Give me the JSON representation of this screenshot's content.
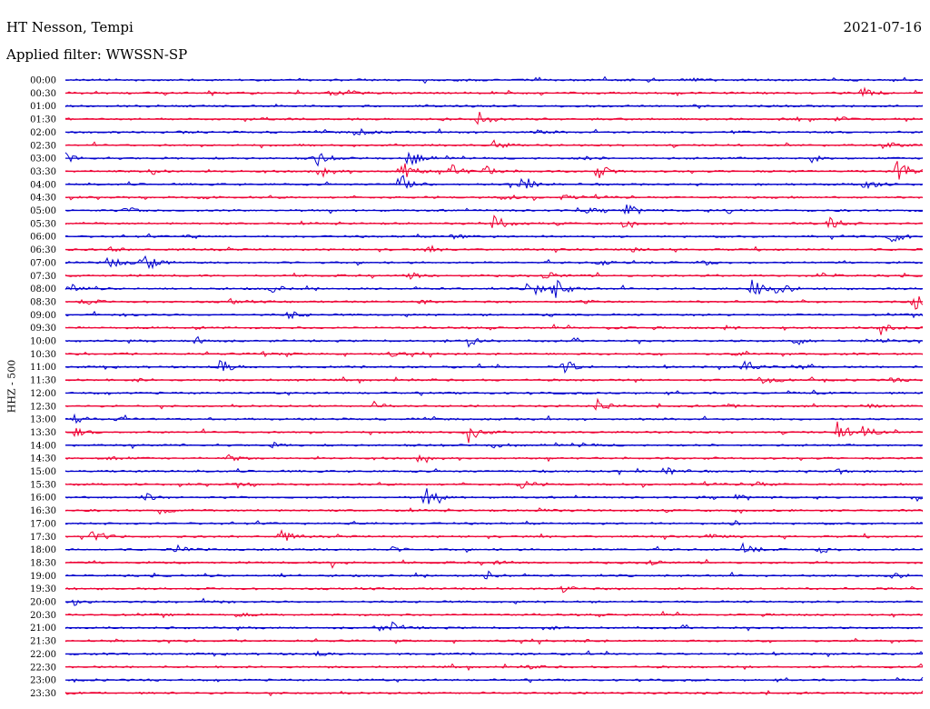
{
  "header": {
    "station": "HT Nesson, Tempi",
    "date": "2021-07-16",
    "filter": "Applied filter: WWSSN-SP"
  },
  "chart_data": {
    "type": "line",
    "chart_kind": "helicorder",
    "channel_label": "HHZ - 500",
    "colors": [
      "#0000cc",
      "#ee0033"
    ],
    "rows": [
      {
        "label": "00:00",
        "events": [
          [
            0.45,
            2
          ],
          [
            0.68,
            2
          ],
          [
            0.73,
            2
          ]
        ]
      },
      {
        "label": "00:30",
        "events": [
          [
            0.3,
            6
          ],
          [
            0.33,
            3
          ],
          [
            0.93,
            8
          ]
        ]
      },
      {
        "label": "01:00",
        "events": []
      },
      {
        "label": "01:30",
        "events": [
          [
            0.23,
            2
          ],
          [
            0.48,
            10
          ],
          [
            0.85,
            3
          ],
          [
            0.9,
            3
          ]
        ]
      },
      {
        "label": "02:00",
        "events": [
          [
            0.13,
            2
          ],
          [
            0.34,
            5
          ],
          [
            0.55,
            2
          ],
          [
            0.78,
            2
          ]
        ]
      },
      {
        "label": "02:30",
        "events": [
          [
            0.5,
            5
          ],
          [
            0.96,
            4
          ]
        ]
      },
      {
        "label": "03:00",
        "events": [
          [
            0.0,
            6
          ],
          [
            0.29,
            12
          ],
          [
            0.4,
            12
          ],
          [
            0.6,
            3
          ],
          [
            0.87,
            4
          ]
        ]
      },
      {
        "label": "03:30",
        "events": [
          [
            0.1,
            4
          ],
          [
            0.3,
            5
          ],
          [
            0.39,
            16
          ],
          [
            0.45,
            9
          ],
          [
            0.49,
            6
          ],
          [
            0.62,
            9
          ],
          [
            0.97,
            14
          ]
        ]
      },
      {
        "label": "04:00",
        "events": [
          [
            0.39,
            14
          ],
          [
            0.53,
            10
          ],
          [
            0.93,
            8
          ]
        ]
      },
      {
        "label": "04:30",
        "events": [
          [
            0.16,
            2
          ],
          [
            0.51,
            4
          ],
          [
            0.58,
            4
          ]
        ]
      },
      {
        "label": "05:00",
        "events": [
          [
            0.07,
            4
          ],
          [
            0.6,
            5
          ],
          [
            0.65,
            10
          ],
          [
            0.77,
            4
          ]
        ]
      },
      {
        "label": "05:30",
        "events": [
          [
            0.5,
            11
          ],
          [
            0.65,
            4
          ],
          [
            0.89,
            10
          ]
        ]
      },
      {
        "label": "06:00",
        "events": [
          [
            0.14,
            3
          ],
          [
            0.45,
            4
          ],
          [
            0.96,
            11
          ]
        ]
      },
      {
        "label": "06:30",
        "events": [
          [
            0.05,
            3
          ],
          [
            0.42,
            3
          ],
          [
            0.66,
            3
          ]
        ]
      },
      {
        "label": "07:00",
        "events": [
          [
            0.05,
            10
          ],
          [
            0.09,
            14
          ],
          [
            0.62,
            4
          ],
          [
            0.74,
            4
          ]
        ]
      },
      {
        "label": "07:30",
        "events": [
          [
            0.4,
            5
          ],
          [
            0.56,
            5
          ],
          [
            0.88,
            4
          ]
        ]
      },
      {
        "label": "08:00",
        "events": [
          [
            0.0,
            8
          ],
          [
            0.24,
            5
          ],
          [
            0.54,
            14
          ],
          [
            0.57,
            13
          ],
          [
            0.8,
            13
          ],
          [
            0.83,
            9
          ]
        ]
      },
      {
        "label": "08:30",
        "events": [
          [
            0.02,
            4
          ],
          [
            0.19,
            4
          ],
          [
            0.41,
            3
          ],
          [
            0.6,
            3
          ],
          [
            0.99,
            10
          ]
        ]
      },
      {
        "label": "09:00",
        "events": [
          [
            0.07,
            2
          ],
          [
            0.26,
            5
          ],
          [
            0.56,
            2
          ]
        ]
      },
      {
        "label": "09:30",
        "events": [
          [
            0.15,
            2
          ],
          [
            0.63,
            2
          ],
          [
            0.77,
            3
          ],
          [
            0.95,
            9
          ]
        ]
      },
      {
        "label": "10:00",
        "events": [
          [
            0.15,
            6
          ],
          [
            0.47,
            6
          ],
          [
            0.85,
            6
          ],
          [
            0.95,
            3
          ]
        ]
      },
      {
        "label": "10:30",
        "events": [
          [
            0.23,
            3
          ],
          [
            0.38,
            3
          ],
          [
            0.78,
            2
          ]
        ]
      },
      {
        "label": "11:00",
        "events": [
          [
            0.18,
            10
          ],
          [
            0.58,
            11
          ],
          [
            0.79,
            10
          ],
          [
            0.85,
            5
          ]
        ]
      },
      {
        "label": "11:30",
        "events": [
          [
            0.08,
            2
          ],
          [
            0.81,
            8
          ],
          [
            0.96,
            3
          ]
        ]
      },
      {
        "label": "12:00",
        "events": []
      },
      {
        "label": "12:30",
        "events": [
          [
            0.36,
            4
          ],
          [
            0.62,
            7
          ],
          [
            0.77,
            3
          ],
          [
            0.93,
            4
          ]
        ]
      },
      {
        "label": "13:00",
        "events": [
          [
            0.01,
            4
          ],
          [
            0.06,
            2
          ]
        ]
      },
      {
        "label": "13:30",
        "events": [
          [
            0.01,
            5
          ],
          [
            0.47,
            12
          ],
          [
            0.9,
            12
          ],
          [
            0.93,
            8
          ]
        ]
      },
      {
        "label": "14:00",
        "events": [
          [
            0.24,
            3
          ],
          [
            0.5,
            4
          ],
          [
            0.6,
            3
          ]
        ]
      },
      {
        "label": "14:30",
        "events": [
          [
            0.05,
            4
          ],
          [
            0.19,
            4
          ],
          [
            0.41,
            3
          ]
        ]
      },
      {
        "label": "15:00",
        "events": [
          [
            0.56,
            3
          ],
          [
            0.7,
            6
          ],
          [
            0.9,
            3
          ]
        ]
      },
      {
        "label": "15:30",
        "events": [
          [
            0.2,
            3
          ],
          [
            0.53,
            6
          ],
          [
            0.8,
            5
          ]
        ]
      },
      {
        "label": "16:00",
        "events": [
          [
            0.09,
            6
          ],
          [
            0.42,
            14
          ],
          [
            0.78,
            3
          ],
          [
            0.99,
            4
          ]
        ]
      },
      {
        "label": "16:30",
        "events": [
          [
            0.11,
            3
          ],
          [
            0.55,
            3
          ]
        ]
      },
      {
        "label": "17:00",
        "events": [
          [
            0.33,
            3
          ],
          [
            0.78,
            3
          ]
        ]
      },
      {
        "label": "17:30",
        "events": [
          [
            0.03,
            10
          ],
          [
            0.25,
            8
          ],
          [
            0.75,
            4
          ]
        ]
      },
      {
        "label": "18:00",
        "events": [
          [
            0.13,
            4
          ],
          [
            0.38,
            3
          ],
          [
            0.79,
            7
          ],
          [
            0.88,
            5
          ]
        ]
      },
      {
        "label": "18:30",
        "events": [
          [
            0.31,
            6
          ],
          [
            0.5,
            3
          ],
          [
            0.68,
            3
          ]
        ]
      },
      {
        "label": "19:00",
        "events": [
          [
            0.25,
            2
          ],
          [
            0.49,
            6
          ],
          [
            0.96,
            5
          ]
        ]
      },
      {
        "label": "19:30",
        "events": [
          [
            0.58,
            4
          ]
        ]
      },
      {
        "label": "20:00",
        "events": [
          [
            0.01,
            5
          ],
          [
            0.17,
            2
          ]
        ]
      },
      {
        "label": "20:30",
        "events": [
          [
            0.2,
            3
          ]
        ]
      },
      {
        "label": "21:00",
        "events": [
          [
            0.36,
            4
          ],
          [
            0.38,
            6
          ],
          [
            0.56,
            2
          ]
        ]
      },
      {
        "label": "21:30",
        "events": [
          [
            0.6,
            2
          ]
        ]
      },
      {
        "label": "22:00",
        "events": [
          [
            0.29,
            3
          ]
        ]
      },
      {
        "label": "22:30",
        "events": [
          [
            0.54,
            2
          ]
        ]
      },
      {
        "label": "23:00",
        "events": []
      },
      {
        "label": "23:30",
        "events": []
      }
    ]
  }
}
